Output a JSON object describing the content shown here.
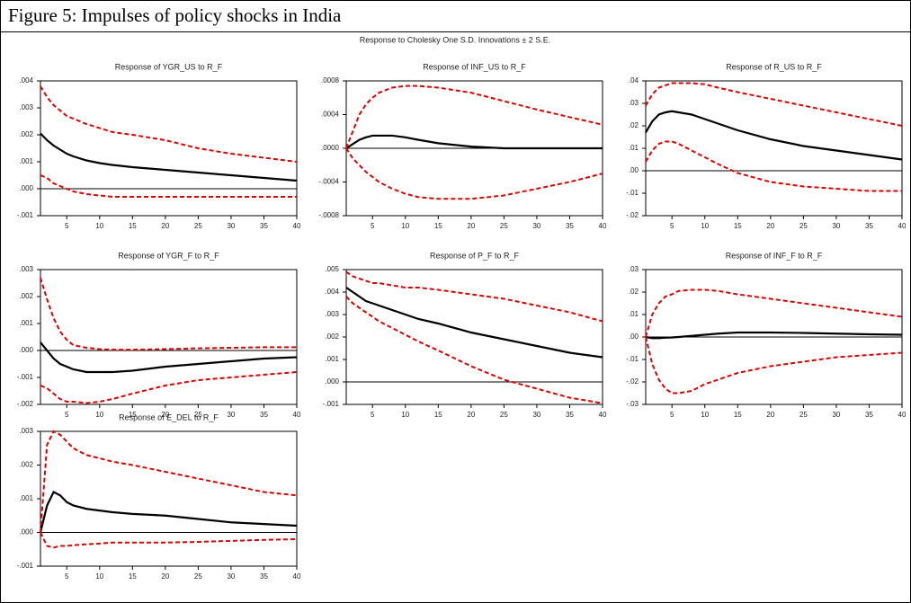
{
  "header": {
    "title": "Figure 5: Impulses of policy shocks in India"
  },
  "subtitle": "Response to Cholesky One S.D. Innovations ± 2 S.E.",
  "chart_data": [
    {
      "type": "line",
      "title": "Response of YGR_US to R_F",
      "x": [
        1,
        2,
        3,
        4,
        5,
        6,
        8,
        10,
        12,
        15,
        20,
        25,
        30,
        35,
        40
      ],
      "xlim": [
        1,
        40
      ],
      "xticks": [
        5,
        10,
        15,
        20,
        25,
        30,
        35,
        40
      ],
      "ylim": [
        -0.001,
        0.004
      ],
      "yticks": [
        {
          "value": -0.001,
          "label": "-.001"
        },
        {
          "value": 0,
          "label": ".000"
        },
        {
          "value": 0.001,
          "label": ".001"
        },
        {
          "value": 0.002,
          "label": ".002"
        },
        {
          "value": 0.003,
          "label": ".003"
        },
        {
          "value": 0.004,
          "label": ".004"
        }
      ],
      "series": [
        {
          "color": "#000000",
          "style": "solid",
          "values": [
            0.00205,
            0.0018,
            0.0016,
            0.00145,
            0.0013,
            0.0012,
            0.00105,
            0.00095,
            0.00088,
            0.0008,
            0.0007,
            0.0006,
            0.0005,
            0.0004,
            0.0003
          ]
        },
        {
          "color": "#e00000",
          "style": "dashed",
          "values": [
            0.0038,
            0.0034,
            0.0031,
            0.0029,
            0.0027,
            0.0026,
            0.0024,
            0.00225,
            0.0021,
            0.002,
            0.0018,
            0.0015,
            0.0013,
            0.00115,
            0.001
          ]
        },
        {
          "color": "#e00000",
          "style": "dashed",
          "values": [
            0.0005,
            0.0004,
            0.0002,
            0.0001,
            0,
            -0.0001,
            -0.0002,
            -0.00025,
            -0.0003,
            -0.0003,
            -0.0003,
            -0.0003,
            -0.0003,
            -0.0003,
            -0.0003
          ]
        }
      ]
    },
    {
      "type": "line",
      "title": "Response of INF_US to R_F",
      "x": [
        1,
        2,
        3,
        4,
        5,
        6,
        8,
        10,
        12,
        15,
        20,
        25,
        30,
        35,
        40
      ],
      "xlim": [
        1,
        40
      ],
      "xticks": [
        5,
        10,
        15,
        20,
        25,
        30,
        35,
        40
      ],
      "ylim": [
        -0.0008,
        0.0008
      ],
      "yticks": [
        {
          "value": -0.0008,
          "label": "-.0008"
        },
        {
          "value": -0.0004,
          "label": "-.0004"
        },
        {
          "value": 0,
          "label": ".0000"
        },
        {
          "value": 0.0004,
          "label": ".0004"
        },
        {
          "value": 0.0008,
          "label": ".0008"
        }
      ],
      "series": [
        {
          "color": "#000000",
          "style": "solid",
          "values": [
            0,
            5e-05,
            0.0001,
            0.00013,
            0.00015,
            0.00015,
            0.00015,
            0.00013,
            0.0001,
            6e-05,
            2e-05,
            0,
            0,
            0,
            0
          ]
        },
        {
          "color": "#e00000",
          "style": "dashed",
          "values": [
            0,
            0.0002,
            0.0004,
            0.00052,
            0.0006,
            0.00066,
            0.00072,
            0.00074,
            0.00074,
            0.00072,
            0.00066,
            0.00056,
            0.00046,
            0.00037,
            0.00028
          ]
        },
        {
          "color": "#e00000",
          "style": "dashed",
          "values": [
            0,
            -0.00012,
            -0.0002,
            -0.00028,
            -0.00034,
            -0.0004,
            -0.00048,
            -0.00054,
            -0.00058,
            -0.0006,
            -0.0006,
            -0.00056,
            -0.00048,
            -0.0004,
            -0.0003
          ]
        }
      ]
    },
    {
      "type": "line",
      "title": "Response of R_US to R_F",
      "x": [
        1,
        2,
        3,
        4,
        5,
        6,
        8,
        10,
        12,
        15,
        20,
        25,
        30,
        35,
        40
      ],
      "xlim": [
        1,
        40
      ],
      "xticks": [
        5,
        10,
        15,
        20,
        25,
        30,
        35,
        40
      ],
      "ylim": [
        -0.02,
        0.04
      ],
      "yticks": [
        {
          "value": -0.02,
          "label": "-.02"
        },
        {
          "value": -0.01,
          "label": "-.01"
        },
        {
          "value": 0,
          "label": ".00"
        },
        {
          "value": 0.01,
          "label": ".01"
        },
        {
          "value": 0.02,
          "label": ".02"
        },
        {
          "value": 0.03,
          "label": ".03"
        },
        {
          "value": 0.04,
          "label": ".04"
        }
      ],
      "series": [
        {
          "color": "#000000",
          "style": "solid",
          "values": [
            0.017,
            0.022,
            0.025,
            0.026,
            0.0265,
            0.026,
            0.025,
            0.023,
            0.021,
            0.018,
            0.014,
            0.011,
            0.009,
            0.007,
            0.005
          ]
        },
        {
          "color": "#e00000",
          "style": "dashed",
          "values": [
            0.029,
            0.034,
            0.037,
            0.038,
            0.039,
            0.039,
            0.039,
            0.0385,
            0.037,
            0.035,
            0.032,
            0.029,
            0.026,
            0.023,
            0.02
          ]
        },
        {
          "color": "#e00000",
          "style": "dashed",
          "values": [
            0.004,
            0.009,
            0.012,
            0.013,
            0.013,
            0.012,
            0.009,
            0.006,
            0.003,
            -0.001,
            -0.005,
            -0.007,
            -0.008,
            -0.009,
            -0.009
          ]
        }
      ]
    },
    {
      "type": "line",
      "title": "Response of YGR_F to R_F",
      "x": [
        1,
        2,
        3,
        4,
        5,
        6,
        8,
        10,
        12,
        15,
        20,
        25,
        30,
        35,
        40
      ],
      "xlim": [
        1,
        40
      ],
      "xticks": [
        5,
        10,
        15,
        20,
        25,
        30,
        35,
        40
      ],
      "ylim": [
        -0.002,
        0.003
      ],
      "yticks": [
        {
          "value": -0.002,
          "label": "-.002"
        },
        {
          "value": -0.001,
          "label": "-.001"
        },
        {
          "value": 0,
          "label": ".000"
        },
        {
          "value": 0.001,
          "label": ".001"
        },
        {
          "value": 0.002,
          "label": ".002"
        },
        {
          "value": 0.003,
          "label": ".003"
        }
      ],
      "series": [
        {
          "color": "#000000",
          "style": "solid",
          "values": [
            0.0003,
            0,
            -0.0003,
            -0.0005,
            -0.0006,
            -0.0007,
            -0.0008,
            -0.0008,
            -0.0008,
            -0.00075,
            -0.0006,
            -0.0005,
            -0.0004,
            -0.0003,
            -0.00025
          ]
        },
        {
          "color": "#e00000",
          "style": "dashed",
          "values": [
            0.0027,
            0.0019,
            0.0012,
            0.0007,
            0.0004,
            0.0002,
            0.0001,
            5e-05,
            3e-05,
            3e-05,
            5e-05,
            8e-05,
            0.0001,
            0.00012,
            0.00012
          ]
        },
        {
          "color": "#e00000",
          "style": "dashed",
          "values": [
            -0.0013,
            -0.0014,
            -0.0016,
            -0.0018,
            -0.0019,
            -0.0019,
            -0.00195,
            -0.0019,
            -0.0018,
            -0.0016,
            -0.0013,
            -0.0011,
            -0.001,
            -0.0009,
            -0.0008
          ]
        }
      ]
    },
    {
      "type": "line",
      "title": "Response of P_F to R_F",
      "x": [
        1,
        2,
        3,
        4,
        5,
        6,
        8,
        10,
        12,
        15,
        20,
        25,
        30,
        35,
        40
      ],
      "xlim": [
        1,
        40
      ],
      "xticks": [
        5,
        10,
        15,
        20,
        25,
        30,
        35,
        40
      ],
      "ylim": [
        -0.001,
        0.005
      ],
      "yticks": [
        {
          "value": -0.001,
          "label": "-.001"
        },
        {
          "value": 0,
          "label": ".000"
        },
        {
          "value": 0.001,
          "label": ".001"
        },
        {
          "value": 0.002,
          "label": ".002"
        },
        {
          "value": 0.003,
          "label": ".003"
        },
        {
          "value": 0.004,
          "label": ".004"
        },
        {
          "value": 0.005,
          "label": ".005"
        }
      ],
      "series": [
        {
          "color": "#000000",
          "style": "solid",
          "values": [
            0.0042,
            0.004,
            0.0038,
            0.0036,
            0.0035,
            0.0034,
            0.0032,
            0.003,
            0.0028,
            0.0026,
            0.0022,
            0.0019,
            0.0016,
            0.0013,
            0.0011
          ]
        },
        {
          "color": "#e00000",
          "style": "dashed",
          "values": [
            0.0049,
            0.0047,
            0.0046,
            0.0045,
            0.0044,
            0.0044,
            0.0043,
            0.0042,
            0.0042,
            0.0041,
            0.0039,
            0.0037,
            0.0034,
            0.0031,
            0.0027
          ]
        },
        {
          "color": "#e00000",
          "style": "dashed",
          "values": [
            0.0038,
            0.0035,
            0.0033,
            0.0031,
            0.0029,
            0.0027,
            0.0024,
            0.0021,
            0.0018,
            0.0014,
            0.0007,
            0.0001,
            -0.0003,
            -0.0007,
            -0.00095
          ]
        }
      ]
    },
    {
      "type": "line",
      "title": "Response of INF_F to R_F",
      "x": [
        1,
        2,
        3,
        4,
        5,
        6,
        8,
        10,
        12,
        15,
        20,
        25,
        30,
        35,
        40
      ],
      "xlim": [
        1,
        40
      ],
      "xticks": [
        5,
        10,
        15,
        20,
        25,
        30,
        35,
        40
      ],
      "ylim": [
        -0.03,
        0.03
      ],
      "yticks": [
        {
          "value": -0.03,
          "label": "-.03"
        },
        {
          "value": -0.02,
          "label": "-.02"
        },
        {
          "value": -0.01,
          "label": "-.01"
        },
        {
          "value": 0,
          "label": ".00"
        },
        {
          "value": 0.01,
          "label": ".01"
        },
        {
          "value": 0.02,
          "label": ".02"
        },
        {
          "value": 0.03,
          "label": ".03"
        }
      ],
      "series": [
        {
          "color": "#000000",
          "style": "solid",
          "values": [
            0,
            -0.0005,
            -0.0005,
            -0.0003,
            -0.0002,
            0,
            0.0005,
            0.001,
            0.0015,
            0.002,
            0.002,
            0.0018,
            0.0015,
            0.0012,
            0.001
          ]
        },
        {
          "color": "#e00000",
          "style": "dashed",
          "values": [
            0,
            0.01,
            0.015,
            0.018,
            0.019,
            0.0205,
            0.021,
            0.021,
            0.0205,
            0.019,
            0.017,
            0.015,
            0.013,
            0.011,
            0.009
          ]
        },
        {
          "color": "#e00000",
          "style": "dashed",
          "values": [
            0,
            -0.012,
            -0.019,
            -0.023,
            -0.025,
            -0.025,
            -0.024,
            -0.021,
            -0.019,
            -0.016,
            -0.013,
            -0.011,
            -0.009,
            -0.008,
            -0.007
          ]
        }
      ]
    },
    {
      "type": "line",
      "title": "Response of E_DEL to R_F",
      "x": [
        1,
        2,
        3,
        4,
        5,
        6,
        8,
        10,
        12,
        15,
        20,
        25,
        30,
        35,
        40
      ],
      "xlim": [
        1,
        40
      ],
      "xticks": [
        5,
        10,
        15,
        20,
        25,
        30,
        35,
        40
      ],
      "ylim": [
        -0.001,
        0.003
      ],
      "yticks": [
        {
          "value": -0.001,
          "label": "-.001"
        },
        {
          "value": 0,
          "label": ".000"
        },
        {
          "value": 0.001,
          "label": ".001"
        },
        {
          "value": 0.002,
          "label": ".002"
        },
        {
          "value": 0.003,
          "label": ".003"
        }
      ],
      "series": [
        {
          "color": "#000000",
          "style": "solid",
          "values": [
            0,
            0.0008,
            0.0012,
            0.0011,
            0.0009,
            0.0008,
            0.0007,
            0.00065,
            0.0006,
            0.00055,
            0.0005,
            0.0004,
            0.0003,
            0.00025,
            0.0002
          ]
        },
        {
          "color": "#e00000",
          "style": "dashed",
          "values": [
            0,
            0.0026,
            0.003,
            0.0029,
            0.0027,
            0.0025,
            0.0023,
            0.0022,
            0.0021,
            0.002,
            0.0018,
            0.0016,
            0.0014,
            0.0012,
            0.0011
          ]
        },
        {
          "color": "#e00000",
          "style": "dashed",
          "values": [
            0,
            -0.0004,
            -0.00045,
            -0.0004,
            -0.0004,
            -0.00038,
            -0.00035,
            -0.00033,
            -0.0003,
            -0.0003,
            -0.0003,
            -0.00028,
            -0.00025,
            -0.00022,
            -0.0002
          ]
        }
      ]
    }
  ]
}
